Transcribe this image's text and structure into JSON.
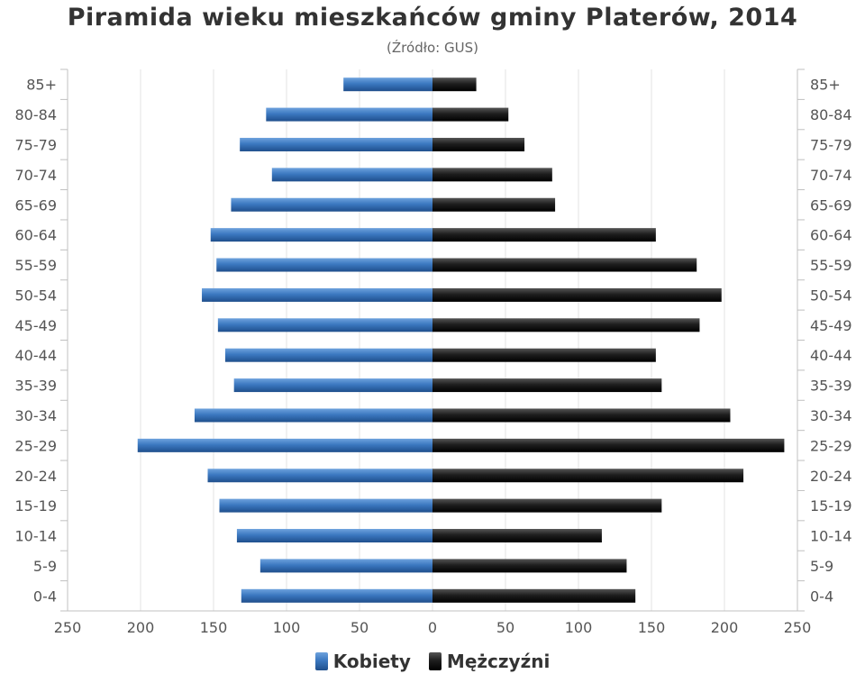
{
  "chart_data": {
    "type": "bar",
    "orientation": "horizontal-pyramid",
    "title": "Piramida wieku mieszkańców gminy Platerów, 2014",
    "subtitle": "(Źródło: GUS)",
    "categories": [
      "85+",
      "80-84",
      "75-79",
      "70-74",
      "65-69",
      "60-64",
      "55-59",
      "50-54",
      "45-49",
      "40-44",
      "35-39",
      "30-34",
      "25-29",
      "20-24",
      "15-19",
      "10-14",
      "5-9",
      "0-4"
    ],
    "series": [
      {
        "name": "Kobiety",
        "color": "#3b78c0",
        "values": [
          61,
          114,
          132,
          110,
          138,
          152,
          148,
          158,
          147,
          142,
          136,
          163,
          202,
          154,
          146,
          134,
          118,
          131
        ]
      },
      {
        "name": "Mężczyźni",
        "color": "#1e1e1e",
        "values": [
          30,
          52,
          63,
          82,
          84,
          153,
          181,
          198,
          183,
          153,
          157,
          204,
          241,
          213,
          157,
          116,
          133,
          139
        ]
      }
    ],
    "xlim": [
      -250,
      250
    ],
    "x_ticks": [
      250,
      200,
      150,
      100,
      50,
      0,
      50,
      100,
      150,
      200,
      250
    ],
    "grid": true,
    "legend_position": "bottom"
  }
}
